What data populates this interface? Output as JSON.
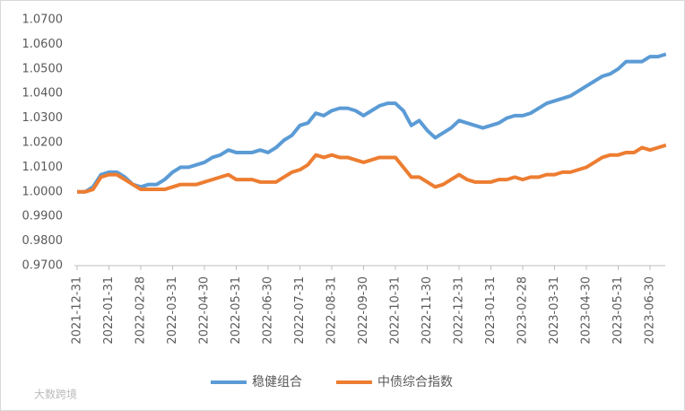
{
  "chart_data": {
    "type": "line",
    "categories": [
      "2021-12-31",
      null,
      null,
      null,
      "2022-01-31",
      null,
      null,
      null,
      "2022-02-28",
      null,
      null,
      null,
      "2022-03-31",
      null,
      null,
      null,
      "2022-04-30",
      null,
      null,
      null,
      "2022-05-31",
      null,
      null,
      null,
      "2022-06-30",
      null,
      null,
      null,
      "2022-07-31",
      null,
      null,
      null,
      "2022-08-31",
      null,
      null,
      null,
      "2022-09-30",
      null,
      null,
      null,
      "2022-10-31",
      null,
      null,
      null,
      "2022-11-30",
      null,
      null,
      null,
      "2022-12-31",
      null,
      null,
      null,
      "2023-01-31",
      null,
      null,
      null,
      "2023-02-28",
      null,
      null,
      null,
      "2023-03-31",
      null,
      null,
      null,
      "2023-04-30",
      null,
      null,
      null,
      "2023-05-31",
      null,
      null,
      null,
      "2023-06-30",
      null,
      null
    ],
    "series": [
      {
        "name": "稳健组合",
        "color": "#5b9bd5",
        "values": [
          1.0,
          1.0,
          1.002,
          1.007,
          1.008,
          1.008,
          1.006,
          1.003,
          1.002,
          1.003,
          1.003,
          1.005,
          1.008,
          1.01,
          1.01,
          1.011,
          1.012,
          1.014,
          1.015,
          1.017,
          1.016,
          1.016,
          1.016,
          1.017,
          1.016,
          1.018,
          1.021,
          1.023,
          1.027,
          1.028,
          1.032,
          1.031,
          1.033,
          1.034,
          1.034,
          1.033,
          1.031,
          1.033,
          1.035,
          1.036,
          1.036,
          1.033,
          1.027,
          1.029,
          1.025,
          1.022,
          1.024,
          1.026,
          1.029,
          1.028,
          1.027,
          1.026,
          1.027,
          1.028,
          1.03,
          1.031,
          1.031,
          1.032,
          1.034,
          1.036,
          1.037,
          1.038,
          1.039,
          1.041,
          1.043,
          1.045,
          1.047,
          1.048,
          1.05,
          1.053,
          1.053,
          1.053,
          1.055,
          1.055,
          1.056
        ]
      },
      {
        "name": "中债综合指数",
        "color": "#ed7d31",
        "values": [
          1.0,
          1.0,
          1.001,
          1.006,
          1.007,
          1.007,
          1.005,
          1.003,
          1.001,
          1.001,
          1.001,
          1.001,
          1.002,
          1.003,
          1.003,
          1.003,
          1.004,
          1.005,
          1.006,
          1.007,
          1.005,
          1.005,
          1.005,
          1.004,
          1.004,
          1.004,
          1.006,
          1.008,
          1.009,
          1.011,
          1.015,
          1.014,
          1.015,
          1.014,
          1.014,
          1.013,
          1.012,
          1.013,
          1.014,
          1.014,
          1.014,
          1.01,
          1.006,
          1.006,
          1.004,
          1.002,
          1.003,
          1.005,
          1.007,
          1.005,
          1.004,
          1.004,
          1.004,
          1.005,
          1.005,
          1.006,
          1.005,
          1.006,
          1.006,
          1.007,
          1.007,
          1.008,
          1.008,
          1.009,
          1.01,
          1.012,
          1.014,
          1.015,
          1.015,
          1.016,
          1.016,
          1.018,
          1.017,
          1.018,
          1.019
        ]
      }
    ],
    "ylim": [
      0.97,
      1.07
    ],
    "yticks": [
      {
        "value": 0.97,
        "label": "0.9700"
      },
      {
        "value": 0.98,
        "label": "0.9800"
      },
      {
        "value": 0.99,
        "label": "0.9900"
      },
      {
        "value": 1.0,
        "label": "1.0000"
      },
      {
        "value": 1.01,
        "label": "1.0100"
      },
      {
        "value": 1.02,
        "label": "1.0200"
      },
      {
        "value": 1.03,
        "label": "1.0300"
      },
      {
        "value": 1.04,
        "label": "1.0400"
      },
      {
        "value": 1.05,
        "label": "1.0500"
      },
      {
        "value": 1.06,
        "label": "1.0600"
      },
      {
        "value": 1.07,
        "label": "1.0700"
      }
    ],
    "grid": false,
    "legend": "bottom"
  },
  "watermark": "大数跨境"
}
